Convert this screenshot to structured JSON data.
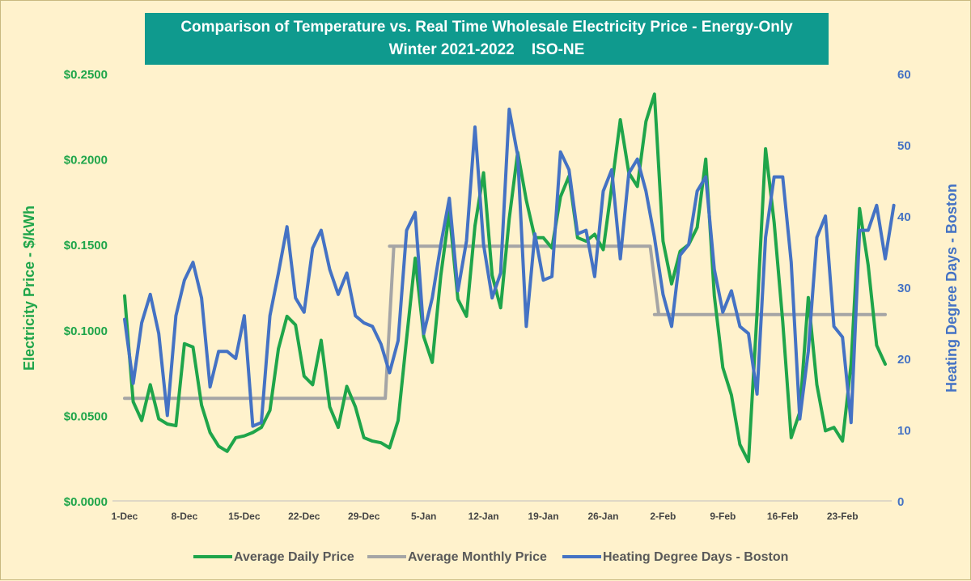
{
  "chart_data": {
    "type": "line",
    "title_line1": "Comparison of Temperature vs. Real Time Wholesale Electricity Price - Energy-Only",
    "title_line2": "Winter 2021-2022    ISO-NE",
    "ylabel": "Electricity Price - $/kWh",
    "y2label": "Heating Degree Days - Boston",
    "ylim": [
      0,
      0.25
    ],
    "y2lim": [
      0,
      60
    ],
    "yticks": [
      "$0.0000",
      "$0.0500",
      "$0.1000",
      "$0.1500",
      "$0.2000",
      "$0.2500"
    ],
    "y2ticks": [
      "0",
      "10",
      "20",
      "30",
      "40",
      "50",
      "60"
    ],
    "xticks": [
      "1-Dec",
      "8-Dec",
      "15-Dec",
      "22-Dec",
      "29-Dec",
      "5-Jan",
      "12-Jan",
      "19-Jan",
      "26-Jan",
      "2-Feb",
      "9-Feb",
      "16-Feb",
      "23-Feb"
    ],
    "days": 90,
    "colors": {
      "daily": "#1fa54a",
      "monthly": "#a5a5a5",
      "hdd": "#4472c4"
    },
    "series": [
      {
        "name": "Average Daily Price",
        "axis": "left",
        "values": [
          0.12,
          0.058,
          0.047,
          0.068,
          0.048,
          0.045,
          0.044,
          0.092,
          0.09,
          0.056,
          0.04,
          0.032,
          0.029,
          0.037,
          0.038,
          0.04,
          0.043,
          0.053,
          0.089,
          0.108,
          0.103,
          0.073,
          0.068,
          0.094,
          0.055,
          0.043,
          0.067,
          0.055,
          0.037,
          0.035,
          0.034,
          0.031,
          0.047,
          0.095,
          0.142,
          0.096,
          0.081,
          0.132,
          0.169,
          0.118,
          0.108,
          0.161,
          0.192,
          0.132,
          0.113,
          0.165,
          0.204,
          0.176,
          0.154,
          0.154,
          0.148,
          0.178,
          0.19,
          0.154,
          0.152,
          0.156,
          0.147,
          0.184,
          0.223,
          0.192,
          0.184,
          0.222,
          0.238,
          0.152,
          0.127,
          0.146,
          0.15,
          0.16,
          0.2,
          0.12,
          0.078,
          0.062,
          0.033,
          0.023,
          0.11,
          0.206,
          0.163,
          0.105,
          0.037,
          0.052,
          0.119,
          0.068,
          0.041,
          0.043,
          0.035,
          0.08,
          0.171,
          0.138,
          0.091,
          0.08
        ]
      },
      {
        "name": "Average Monthly Price",
        "axis": "left",
        "values": [
          0.06,
          0.06,
          0.06,
          0.06,
          0.06,
          0.06,
          0.06,
          0.06,
          0.06,
          0.06,
          0.06,
          0.06,
          0.06,
          0.06,
          0.06,
          0.06,
          0.06,
          0.06,
          0.06,
          0.06,
          0.06,
          0.06,
          0.06,
          0.06,
          0.06,
          0.06,
          0.06,
          0.06,
          0.06,
          0.06,
          0.06,
          0.149,
          0.149,
          0.149,
          0.149,
          0.149,
          0.149,
          0.149,
          0.149,
          0.149,
          0.149,
          0.149,
          0.149,
          0.149,
          0.149,
          0.149,
          0.149,
          0.149,
          0.149,
          0.149,
          0.149,
          0.149,
          0.149,
          0.149,
          0.149,
          0.149,
          0.149,
          0.149,
          0.149,
          0.149,
          0.149,
          0.149,
          0.109,
          0.109,
          0.109,
          0.109,
          0.109,
          0.109,
          0.109,
          0.109,
          0.109,
          0.109,
          0.109,
          0.109,
          0.109,
          0.109,
          0.109,
          0.109,
          0.109,
          0.109,
          0.109,
          0.109,
          0.109,
          0.109,
          0.109,
          0.109,
          0.109,
          0.109,
          0.109,
          0.109
        ]
      },
      {
        "name": "Heating Degree Days - Boston",
        "axis": "right",
        "values": [
          25.5,
          16.5,
          25.0,
          29.0,
          23.5,
          12.0,
          26.0,
          31.0,
          33.5,
          28.5,
          16.0,
          21.0,
          21.0,
          20.0,
          26.0,
          10.5,
          11.0,
          26.0,
          32.0,
          38.5,
          28.5,
          26.5,
          35.5,
          38.0,
          32.5,
          29.0,
          32.0,
          26.0,
          25.0,
          24.5,
          22.0,
          18.0,
          22.5,
          38.0,
          40.5,
          23.5,
          28.5,
          36.0,
          42.5,
          29.5,
          36.5,
          52.5,
          36.0,
          28.5,
          32.0,
          55.0,
          48.5,
          24.5,
          37.5,
          31.0,
          31.5,
          49.0,
          46.5,
          37.5,
          38.0,
          31.5,
          43.5,
          46.5,
          34.0,
          46.0,
          48.0,
          43.5,
          37.0,
          29.0,
          24.5,
          34.5,
          36.0,
          43.5,
          45.5,
          32.5,
          26.5,
          29.5,
          24.5,
          23.5,
          15.0,
          37.0,
          45.5,
          45.5,
          33.5,
          11.5,
          21.0,
          37.0,
          40.0,
          24.5,
          23.0,
          11.0,
          38.0,
          38.0,
          41.5,
          34.0,
          41.5
        ]
      }
    ],
    "legend_position": "bottom",
    "grid": false
  }
}
